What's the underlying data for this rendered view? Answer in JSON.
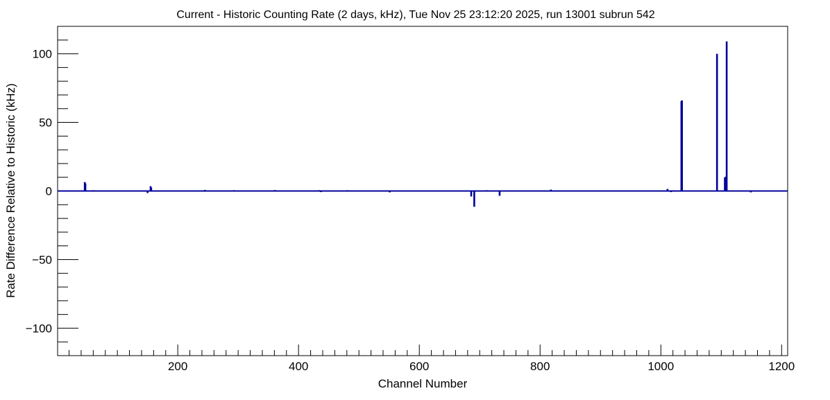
{
  "chart_data": {
    "type": "bar",
    "title": "Current - Historic Counting Rate (2 days, kHz), Tue Nov 25 23:12:20 2025, run 13001 subrun 542",
    "xlabel": "Channel Number",
    "ylabel": "Rate Difference Relative to Historic (kHz)",
    "xlim": [
      1,
      1210
    ],
    "ylim": [
      -120,
      120
    ],
    "xticks": [
      200,
      400,
      600,
      800,
      1000,
      1200
    ],
    "yticks": [
      -100,
      -50,
      0,
      50,
      100
    ],
    "line_color": "#000099",
    "grid": false,
    "legend": "none",
    "series": [
      {
        "x": [
          46,
          47,
          60,
          75,
          87,
          142,
          150,
          155,
          156,
          178,
          231,
          245,
          251,
          293,
          353,
          361,
          434,
          437,
          442,
          455,
          481,
          551,
          660,
          686,
          691,
          712,
          733,
          742,
          778,
          782,
          786,
          815,
          818,
          842,
          851,
          930,
          1011,
          1017,
          1034,
          1035,
          1072,
          1093,
          1106,
          1108,
          1109,
          1138,
          1149
        ],
        "values": [
          6.5,
          5.5,
          0.6,
          0.5,
          0.5,
          0.5,
          -1.5,
          3.5,
          2.5,
          0.5,
          0.5,
          0.8,
          0.5,
          0.6,
          0.5,
          0.7,
          0.6,
          -0.8,
          0.5,
          0.5,
          0.6,
          -1.0,
          0.5,
          -4.0,
          -11.5,
          0.6,
          -3.5,
          0.5,
          0.5,
          0.5,
          0.5,
          0.5,
          1.0,
          0.5,
          0.5,
          0.4,
          1.5,
          -0.8,
          65.5,
          66.0,
          0.5,
          100.0,
          10.0,
          10.5,
          109.0,
          0.5,
          -1.0
        ]
      }
    ]
  }
}
